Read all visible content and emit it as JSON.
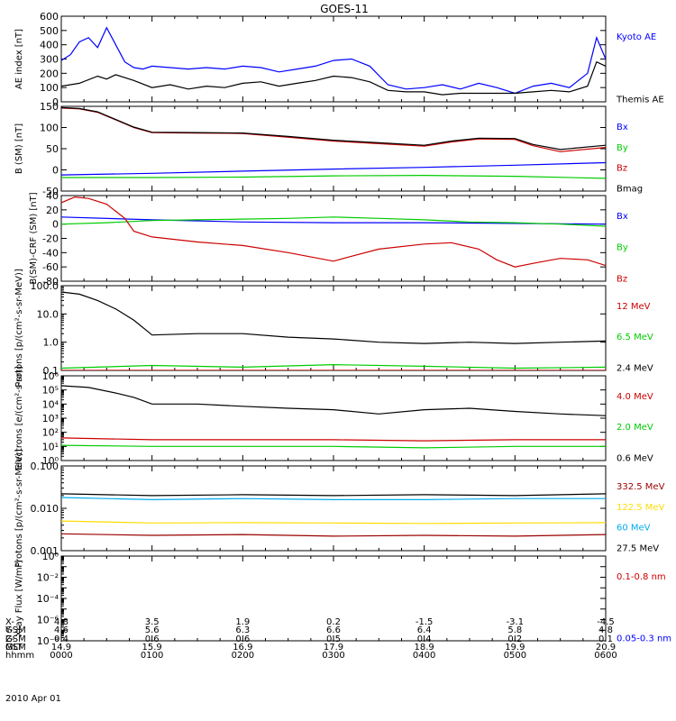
{
  "title": "GOES-11",
  "chart_data": [
    {
      "type": "line",
      "ylabel": "AE index [nT]",
      "ylim": [
        0,
        600
      ],
      "yticks": [
        0,
        100,
        200,
        300,
        400,
        500,
        600
      ],
      "yticklabels": [
        "0",
        "100",
        "200",
        "300",
        "400",
        "500",
        "600"
      ],
      "series": [
        {
          "name": "Kyoto AE",
          "color": "#0000ff",
          "x": [
            0,
            0.1,
            0.2,
            0.3,
            0.4,
            0.5,
            0.7,
            0.8,
            0.9,
            1,
            1.2,
            1.4,
            1.6,
            1.8,
            2,
            2.2,
            2.4,
            2.6,
            2.8,
            3,
            3.2,
            3.4,
            3.6,
            3.8,
            4,
            4.2,
            4.4,
            4.6,
            4.8,
            5,
            5.2,
            5.4,
            5.6,
            5.8,
            5.9,
            6
          ],
          "values": [
            290,
            330,
            420,
            450,
            380,
            520,
            280,
            240,
            230,
            250,
            240,
            230,
            240,
            230,
            250,
            240,
            210,
            230,
            250,
            290,
            300,
            250,
            120,
            90,
            100,
            120,
            90,
            130,
            100,
            60,
            110,
            130,
            100,
            200,
            450,
            300
          ]
        },
        {
          "name": "Themis AE",
          "color": "#000000",
          "x": [
            0,
            0.2,
            0.4,
            0.5,
            0.6,
            0.8,
            1,
            1.2,
            1.4,
            1.6,
            1.8,
            2,
            2.2,
            2.4,
            2.6,
            2.8,
            3,
            3.2,
            3.4,
            3.6,
            3.8,
            4,
            4.2,
            4.4,
            4.6,
            4.8,
            5,
            5.2,
            5.4,
            5.6,
            5.8,
            5.9,
            6
          ],
          "values": [
            110,
            130,
            180,
            160,
            190,
            150,
            100,
            120,
            90,
            110,
            100,
            130,
            140,
            110,
            130,
            150,
            180,
            170,
            140,
            80,
            70,
            70,
            50,
            60,
            60,
            60,
            60,
            70,
            80,
            70,
            110,
            280,
            250
          ]
        }
      ]
    },
    {
      "type": "line",
      "ylabel": "B (SM) [nT]",
      "ylim": [
        -50,
        150
      ],
      "yticks": [
        -50,
        0,
        50,
        100,
        150
      ],
      "yticklabels": [
        "-50",
        "0",
        "50",
        "100",
        "150"
      ],
      "series": [
        {
          "name": "Bx",
          "color": "#0000ff",
          "x": [
            0,
            1,
            2,
            3,
            4,
            5,
            6
          ],
          "values": [
            -12,
            -8,
            -3,
            2,
            6,
            11,
            17
          ]
        },
        {
          "name": "By",
          "color": "#00cc00",
          "x": [
            0,
            1,
            2,
            3,
            4,
            5,
            6
          ],
          "values": [
            -18,
            -18,
            -17,
            -14,
            -13,
            -15,
            -20
          ]
        },
        {
          "name": "Bz",
          "color": "#cc0000",
          "x": [
            0,
            0.2,
            0.4,
            0.6,
            0.8,
            1,
            1.5,
            2,
            2.5,
            3,
            3.5,
            4,
            4.3,
            4.6,
            5,
            5.2,
            5.5,
            6
          ],
          "values": [
            146,
            144,
            136,
            118,
            100,
            88,
            87,
            86,
            77,
            68,
            62,
            56,
            66,
            73,
            72,
            57,
            43,
            53
          ]
        },
        {
          "name": "Bmag",
          "color": "#000000",
          "x": [
            0,
            0.2,
            0.4,
            0.6,
            0.8,
            1,
            1.5,
            2,
            2.5,
            3,
            3.5,
            4,
            4.3,
            4.6,
            5,
            5.2,
            5.5,
            6
          ],
          "values": [
            147,
            145,
            137,
            119,
            101,
            89,
            88,
            87,
            79,
            70,
            64,
            58,
            68,
            75,
            74,
            60,
            48,
            58
          ]
        }
      ]
    },
    {
      "type": "line",
      "ylabel": "B(SM)-CRF (SM) [nT]",
      "ylim": [
        -80,
        40
      ],
      "yticks": [
        -80,
        -60,
        -40,
        -20,
        0,
        20,
        40
      ],
      "yticklabels": [
        "-80",
        "-60",
        "-40",
        "-20",
        "0",
        "20",
        "40"
      ],
      "series": [
        {
          "name": "Bx",
          "color": "#0000ff",
          "x": [
            0,
            1,
            2,
            3,
            4,
            5,
            6
          ],
          "values": [
            10,
            6,
            3,
            2,
            2,
            1,
            0
          ]
        },
        {
          "name": "By",
          "color": "#00cc00",
          "x": [
            0,
            0.5,
            1,
            1.5,
            2,
            2.5,
            3,
            3.5,
            4,
            4.5,
            5,
            5.5,
            6
          ],
          "values": [
            0,
            2,
            5,
            6,
            7,
            8,
            10,
            8,
            6,
            3,
            2,
            0,
            -3
          ]
        },
        {
          "name": "Bz",
          "color": "#cc0000",
          "x": [
            0,
            0.15,
            0.3,
            0.5,
            0.7,
            0.8,
            1,
            1.5,
            2,
            2.5,
            3,
            3.2,
            3.5,
            4,
            4.3,
            4.6,
            4.8,
            5,
            5.2,
            5.5,
            5.8,
            6
          ],
          "values": [
            30,
            38,
            36,
            28,
            8,
            -10,
            -18,
            -25,
            -30,
            -40,
            -52,
            -45,
            -35,
            -28,
            -26,
            -35,
            -50,
            -60,
            -55,
            -48,
            -50,
            -58
          ]
        }
      ]
    },
    {
      "type": "line",
      "ylabel": "Protons [p/(cm²-s-sr-MeV)]",
      "yscale": "log",
      "ylim": [
        0.1,
        100
      ],
      "yticks": [
        0.1,
        1,
        10,
        100
      ],
      "yticklabels": [
        "0.1",
        "1.0",
        "10.0",
        "100.0"
      ],
      "series": [
        {
          "name": "12 MeV",
          "color": "#cc0000",
          "x": [
            0,
            1,
            2,
            3,
            4,
            5,
            6
          ],
          "values": [
            0.1,
            0.1,
            0.1,
            0.1,
            0.1,
            0.1,
            0.1
          ]
        },
        {
          "name": "6.5 MeV",
          "color": "#00cc00",
          "x": [
            0,
            1,
            2,
            3,
            4,
            5,
            6
          ],
          "values": [
            0.12,
            0.15,
            0.13,
            0.16,
            0.14,
            0.12,
            0.13
          ]
        },
        {
          "name": "2.4 MeV",
          "color": "#000000",
          "x": [
            0,
            0.2,
            0.4,
            0.6,
            0.8,
            1,
            1.5,
            2,
            2.5,
            3,
            3.5,
            4,
            4.5,
            5,
            5.5,
            6
          ],
          "values": [
            60,
            50,
            30,
            15,
            6,
            1.8,
            2,
            2,
            1.5,
            1.3,
            1,
            0.9,
            1,
            0.9,
            1,
            1.1
          ]
        }
      ]
    },
    {
      "type": "line",
      "ylabel": "Electrons [e/(cm²-s-sr)]",
      "yscale": "log",
      "ylim": [
        1,
        1000000
      ],
      "yticks": [
        1,
        10,
        100,
        1000,
        10000,
        100000,
        1000000
      ],
      "yticklabels": [
        "10⁰",
        "10¹",
        "10²",
        "10³",
        "10⁴",
        "10⁵",
        "10⁶"
      ],
      "series": [
        {
          "name": "4.0 MeV",
          "color": "#cc0000",
          "x": [
            0,
            1,
            2,
            3,
            4,
            5,
            6
          ],
          "values": [
            40,
            30,
            30,
            30,
            25,
            30,
            30
          ]
        },
        {
          "name": "2.0 MeV",
          "color": "#00cc00",
          "x": [
            0,
            1,
            2,
            3,
            4,
            5,
            6
          ],
          "values": [
            12,
            10,
            10,
            10,
            8,
            10,
            10
          ]
        },
        {
          "name": "0.6 MeV",
          "color": "#000000",
          "x": [
            0,
            0.3,
            0.6,
            0.8,
            1,
            1.5,
            2,
            2.5,
            3,
            3.5,
            4,
            4.5,
            5,
            5.5,
            6
          ],
          "values": [
            200000,
            150000,
            60000,
            30000,
            10000,
            10000,
            7000,
            5000,
            4000,
            2000,
            4000,
            5000,
            3000,
            2000,
            1500
          ]
        }
      ]
    },
    {
      "type": "line",
      "ylabel": "Protons [p/(cm²-s-sr-MeV)]",
      "yscale": "log",
      "ylim": [
        0.001,
        0.1
      ],
      "yticks": [
        0.001,
        0.01,
        0.1
      ],
      "yticklabels": [
        "0.001",
        "0.010",
        "0.100"
      ],
      "series": [
        {
          "name": "332.5 MeV",
          "color": "#990000",
          "x": [
            0,
            1,
            2,
            3,
            4,
            5,
            6
          ],
          "values": [
            0.0025,
            0.0023,
            0.0024,
            0.0022,
            0.0023,
            0.0022,
            0.0024
          ]
        },
        {
          "name": "122.5 MeV",
          "color": "#ffdd00",
          "x": [
            0,
            1,
            2,
            3,
            4,
            5,
            6
          ],
          "values": [
            0.005,
            0.0045,
            0.0046,
            0.0045,
            0.0044,
            0.0045,
            0.0046
          ]
        },
        {
          "name": "60 MeV",
          "color": "#00aaee",
          "x": [
            0,
            1,
            2,
            3,
            4,
            5,
            6
          ],
          "values": [
            0.018,
            0.016,
            0.017,
            0.016,
            0.016,
            0.017,
            0.017
          ]
        },
        {
          "name": "27.5 MeV",
          "color": "#000000",
          "x": [
            0,
            1,
            2,
            3,
            4,
            5,
            6
          ],
          "values": [
            0.022,
            0.02,
            0.021,
            0.02,
            0.021,
            0.02,
            0.022
          ]
        }
      ]
    },
    {
      "type": "line",
      "ylabel": "Xray Flux [W/m²]",
      "yscale": "log",
      "ylim": [
        1e-08,
        1
      ],
      "yticks": [
        1e-08,
        1e-07,
        1e-06,
        1e-05,
        0.0001,
        0.001,
        0.01,
        0.1,
        1
      ],
      "yticklabels": [
        "10⁻⁸",
        "",
        "10⁻⁶",
        "",
        "10⁻⁴",
        "",
        "10⁻²",
        "",
        "10⁰"
      ],
      "series": [
        {
          "name": "0.1-0.8 nm",
          "color": "#cc0000",
          "x": [],
          "values": []
        },
        {
          "name": "0.05-0.3 nm",
          "color": "#0000ff",
          "x": [],
          "values": []
        }
      ]
    }
  ],
  "footer": {
    "rows": [
      {
        "label": "X-GSM",
        "values": [
          "4.8",
          "3.5",
          "1.9",
          "0.2",
          "-1.5",
          "-3.1",
          "-4.5"
        ]
      },
      {
        "label": "Y-GSM",
        "values": [
          "4.6",
          "5.6",
          "6.3",
          "6.6",
          "6.4",
          "5.8",
          "4.8"
        ]
      },
      {
        "label": "Z-GSM",
        "values": [
          "0.4",
          "0.6",
          "0.6",
          "0.5",
          "0.4",
          "0.2",
          "0.1"
        ]
      },
      {
        "label": "MLT",
        "values": [
          "14.9",
          "15.9",
          "16.9",
          "17.9",
          "18.9",
          "19.9",
          "20.9"
        ]
      },
      {
        "label": "hhmm",
        "values": [
          "0000",
          "0100",
          "0200",
          "0300",
          "0400",
          "0500",
          "0600"
        ]
      }
    ],
    "date": "2010 Apr 01"
  }
}
